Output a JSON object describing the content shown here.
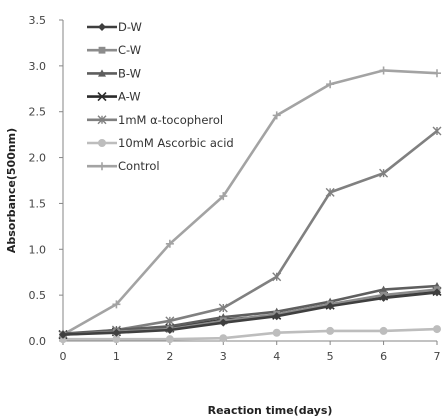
{
  "chart_data": {
    "type": "line",
    "xlabel": "Reaction time(days)",
    "ylabel": "Absorbance(500nm)",
    "x": [
      0,
      1,
      2,
      3,
      4,
      5,
      6,
      7
    ],
    "xlim": [
      0,
      7
    ],
    "ylim": [
      0,
      3.5
    ],
    "x_ticks": [
      "0",
      "1",
      "2",
      "3",
      "4",
      "5",
      "6",
      "7"
    ],
    "y_ticks": [
      "0.0",
      "0.5",
      "1.0",
      "1.5",
      "2.0",
      "2.5",
      "3.0",
      "3.5"
    ],
    "grid": false,
    "legend_position": "top-left",
    "series": [
      {
        "name": "D-W",
        "marker": "diamond",
        "color": "#3f3f3f",
        "values": [
          0.07,
          0.09,
          0.12,
          0.2,
          0.27,
          0.38,
          0.47,
          0.53
        ]
      },
      {
        "name": "C-W",
        "marker": "square",
        "color": "#8c8c8c",
        "values": [
          0.07,
          0.1,
          0.13,
          0.22,
          0.29,
          0.4,
          0.5,
          0.56
        ]
      },
      {
        "name": "B-W",
        "marker": "triangle",
        "color": "#5e5e5e",
        "values": [
          0.08,
          0.12,
          0.16,
          0.26,
          0.32,
          0.43,
          0.56,
          0.6
        ]
      },
      {
        "name": "A-W",
        "marker": "x",
        "color": "#2b2b2b",
        "values": [
          0.07,
          0.1,
          0.14,
          0.23,
          0.28,
          0.39,
          0.49,
          0.54
        ]
      },
      {
        "name": "1mM α-tocopherol",
        "marker": "asterisk",
        "color": "#808080",
        "values": [
          0.07,
          0.12,
          0.22,
          0.36,
          0.7,
          1.62,
          1.83,
          2.29
        ]
      },
      {
        "name": "10mM Ascorbic acid",
        "marker": "circle",
        "color": "#bdbdbd",
        "values": [
          0.02,
          0.02,
          0.02,
          0.03,
          0.09,
          0.11,
          0.11,
          0.13
        ]
      },
      {
        "name": "Control",
        "marker": "plus",
        "color": "#a3a3a3",
        "values": [
          0.07,
          0.4,
          1.06,
          1.58,
          2.46,
          2.8,
          2.95,
          2.92
        ]
      }
    ]
  }
}
